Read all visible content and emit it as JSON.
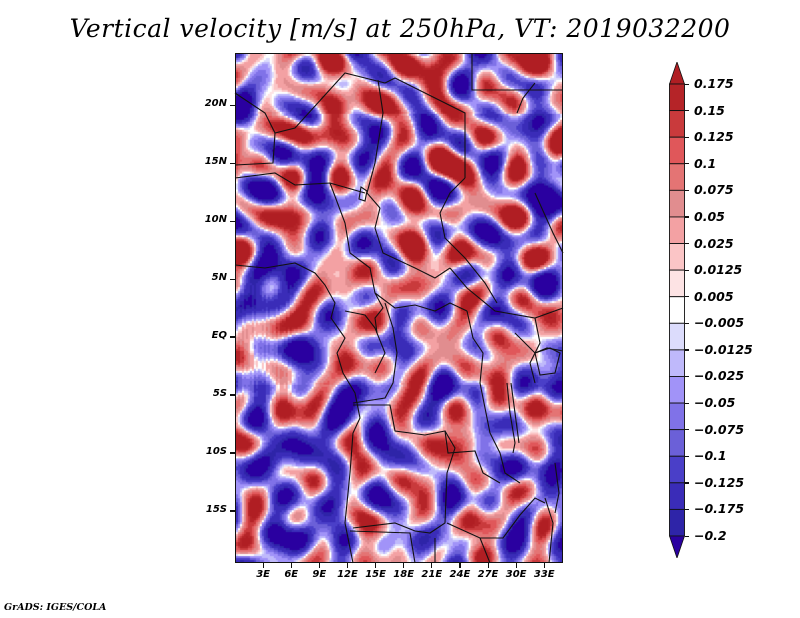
{
  "title": "Vertical velocity [m/s] at 250hPa, VT: 2019032200",
  "footer": "GrADS: IGES/COLA",
  "map": {
    "variable": "Vertical velocity",
    "units": "m/s",
    "level": "250hPa",
    "valid_time": "2019032200",
    "lat_range": [
      -19.5,
      24.5
    ],
    "lon_range": [
      0,
      35
    ],
    "lat_ticks": [
      {
        "value": 20,
        "label": "20N"
      },
      {
        "value": 15,
        "label": "15N"
      },
      {
        "value": 10,
        "label": "10N"
      },
      {
        "value": 5,
        "label": "5N"
      },
      {
        "value": 0,
        "label": "EQ"
      },
      {
        "value": -5,
        "label": "5S"
      },
      {
        "value": -10,
        "label": "10S"
      },
      {
        "value": -15,
        "label": "15S"
      }
    ],
    "lon_ticks": [
      {
        "value": 3,
        "label": "3E"
      },
      {
        "value": 6,
        "label": "6E"
      },
      {
        "value": 9,
        "label": "9E"
      },
      {
        "value": 12,
        "label": "12E"
      },
      {
        "value": 15,
        "label": "15E"
      },
      {
        "value": 18,
        "label": "18E"
      },
      {
        "value": 21,
        "label": "21E"
      },
      {
        "value": 24,
        "label": "24E"
      },
      {
        "value": 27,
        "label": "27E"
      },
      {
        "value": 30,
        "label": "30E"
      },
      {
        "value": 33,
        "label": "33E"
      }
    ]
  },
  "colorbar": {
    "labels": [
      "0.175",
      "0.15",
      "0.125",
      "0.1",
      "0.075",
      "0.05",
      "0.025",
      "0.0125",
      "0.005",
      "−0.005",
      "−0.0125",
      "−0.025",
      "−0.05",
      "−0.075",
      "−0.1",
      "−0.125",
      "−0.175",
      "−0.2"
    ],
    "levels": [
      0.175,
      0.15,
      0.125,
      0.1,
      0.075,
      0.05,
      0.025,
      0.0125,
      0.005,
      -0.005,
      -0.0125,
      -0.025,
      -0.05,
      -0.075,
      -0.1,
      -0.125,
      -0.175,
      -0.2
    ],
    "colors": [
      "#b01e23",
      "#b52428",
      "#c93a3c",
      "#e0575a",
      "#e47474",
      "#e18d8f",
      "#f3a1a3",
      "#fbc5c6",
      "#fde3e4",
      "#ffffff",
      "#dcdcfc",
      "#bfb9fb",
      "#a193f8",
      "#8072e8",
      "#6b60d8",
      "#4a3fc8",
      "#3a2cb8",
      "#2e24a8",
      "#2a00a0"
    ],
    "top_arrow_color": "#b01e23",
    "bottom_arrow_color": "#2a00a0"
  }
}
